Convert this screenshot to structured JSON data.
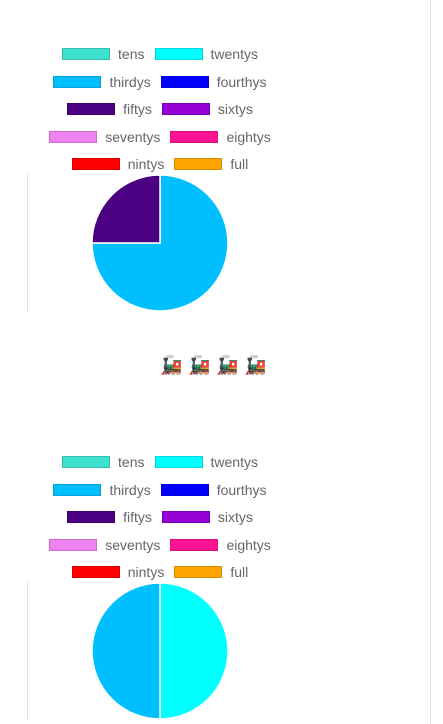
{
  "legend": [
    {
      "label": "tens",
      "color": "#40E0D0"
    },
    {
      "label": "twentys",
      "color": "#00FFFF"
    },
    {
      "label": "thirdys",
      "color": "#00BFFF"
    },
    {
      "label": "fourthys",
      "color": "#0000FF"
    },
    {
      "label": "fiftys",
      "color": "#4B0082"
    },
    {
      "label": "sixtys",
      "color": "#9400D3"
    },
    {
      "label": "seventys",
      "color": "#EE82EE"
    },
    {
      "label": "eightys",
      "color": "#FF1493"
    },
    {
      "label": "nintys",
      "color": "#FF0000"
    },
    {
      "label": "full",
      "color": "#FFA500"
    }
  ],
  "train_icons": [
    "🚂",
    "🚂",
    "🚂",
    "🚂"
  ],
  "chart_data": [
    {
      "type": "pie",
      "categories": [
        "tens",
        "twentys",
        "thirdys",
        "fourthys",
        "fiftys",
        "sixtys",
        "seventys",
        "eightys",
        "nintys",
        "full"
      ],
      "values": [
        0,
        0,
        75,
        0,
        25,
        0,
        0,
        0,
        0,
        0
      ],
      "legend_position": "top"
    },
    {
      "type": "pie",
      "categories": [
        "tens",
        "twentys",
        "thirdys",
        "fourthys",
        "fiftys",
        "sixtys",
        "seventys",
        "eightys",
        "nintys",
        "full"
      ],
      "values": [
        0,
        50,
        50,
        0,
        0,
        0,
        0,
        0,
        0,
        0
      ],
      "legend_position": "top"
    }
  ]
}
